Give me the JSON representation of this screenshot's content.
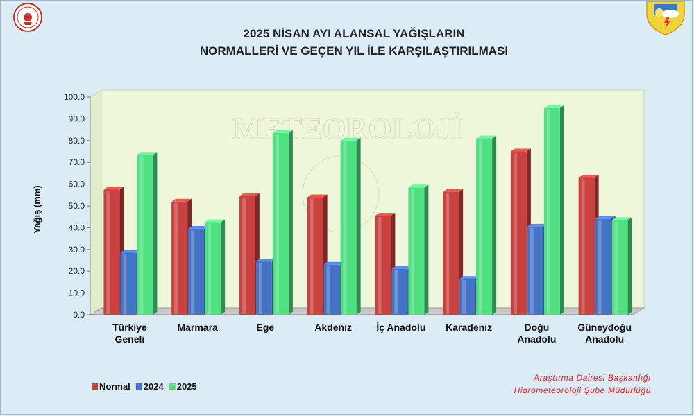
{
  "title_lines": [
    "2025 NİSAN AYI ALANSAL YAĞIŞLARIN",
    "NORMALLERİ VE GEÇEN YIL İLE KARŞILAŞTIRILMASI"
  ],
  "credit_lines": [
    "Araştırma Dairesi Başkanlığı",
    "Hidrometeoroloji Şube Müdürlüğü"
  ],
  "watermark_text": "METEOROLOJİ",
  "colors": {
    "Normal": "#c9423f",
    "2024": "#4472c4",
    "2025": "#4fe082",
    "plot_background": "#eef7d9"
  },
  "chart_data": {
    "type": "bar",
    "title": "2025 NİSAN AYI ALANSAL YAĞIŞLARIN NORMALLERİ VE GEÇEN YIL İLE KARŞILAŞTIRILMASI",
    "ylabel": "Yağış (mm)",
    "xlabel": "",
    "ylim": [
      0,
      100
    ],
    "yticks": [
      "0.0",
      "10.0",
      "20.0",
      "30.0",
      "40.0",
      "50.0",
      "60.0",
      "70.0",
      "80.0",
      "90.0",
      "100.0"
    ],
    "categories": [
      [
        "Türkiye",
        "Geneli"
      ],
      [
        "Marmara"
      ],
      [
        "Ege"
      ],
      [
        "Akdeniz"
      ],
      [
        "İç Anadolu"
      ],
      [
        "Karadeniz"
      ],
      [
        "Doğu",
        "Anadolu"
      ],
      [
        "Güneydoğu",
        "Anadolu"
      ]
    ],
    "series": [
      {
        "name": "Normal",
        "values": [
          57.5,
          52.0,
          54.5,
          54.0,
          45.5,
          56.5,
          75.0,
          63.0
        ]
      },
      {
        "name": "2024",
        "values": [
          28.5,
          39.5,
          24.5,
          23.0,
          21.0,
          16.5,
          40.5,
          44.0
        ]
      },
      {
        "name": "2025",
        "values": [
          73.5,
          42.5,
          83.5,
          80.0,
          58.5,
          81.0,
          95.0,
          43.5
        ]
      }
    ],
    "legend_position": "bottom-left",
    "grid": false
  }
}
